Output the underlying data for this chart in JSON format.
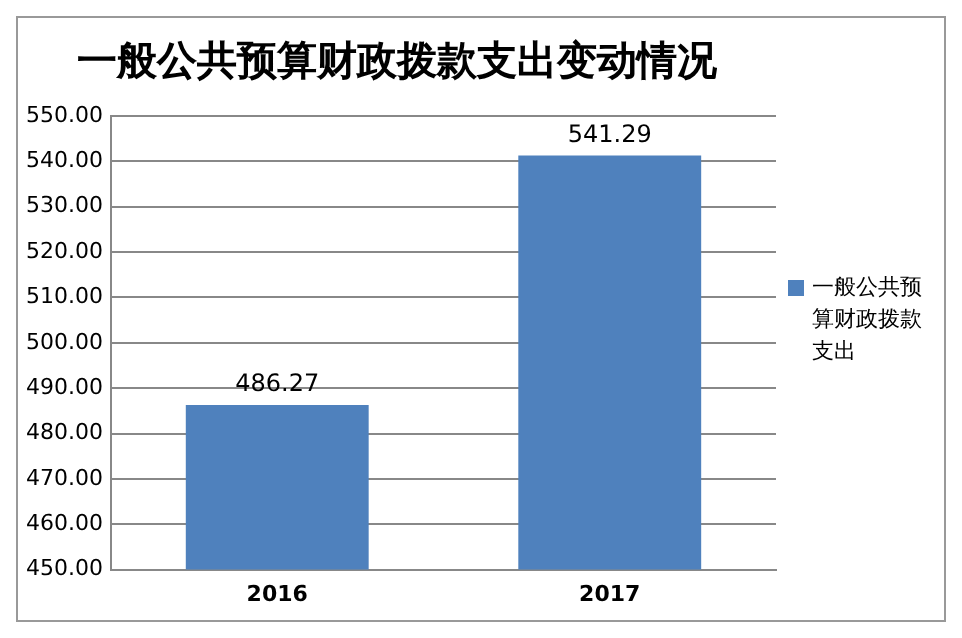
{
  "chart_data": {
    "type": "bar",
    "title": "一般公共预算财政拨款支出变动情况",
    "categories": [
      "2016",
      "2017"
    ],
    "series": [
      {
        "name": "一般公共预算财政拨款支出",
        "color": "#4f81bd",
        "values": [
          486.27,
          541.29
        ]
      }
    ],
    "ylim": [
      450,
      550
    ],
    "yticks": [
      {
        "value": 450,
        "label": "450.00"
      },
      {
        "value": 460,
        "label": "460.00"
      },
      {
        "value": 470,
        "label": "470.00"
      },
      {
        "value": 480,
        "label": "480.00"
      },
      {
        "value": 490,
        "label": "490.00"
      },
      {
        "value": 500,
        "label": "500.00"
      },
      {
        "value": 510,
        "label": "510.00"
      },
      {
        "value": 520,
        "label": "520.00"
      },
      {
        "value": 530,
        "label": "530.00"
      },
      {
        "value": 540,
        "label": "540.00"
      },
      {
        "value": 550,
        "label": "550.00"
      }
    ],
    "grid": "y",
    "legend": "right",
    "data_labels": true
  }
}
